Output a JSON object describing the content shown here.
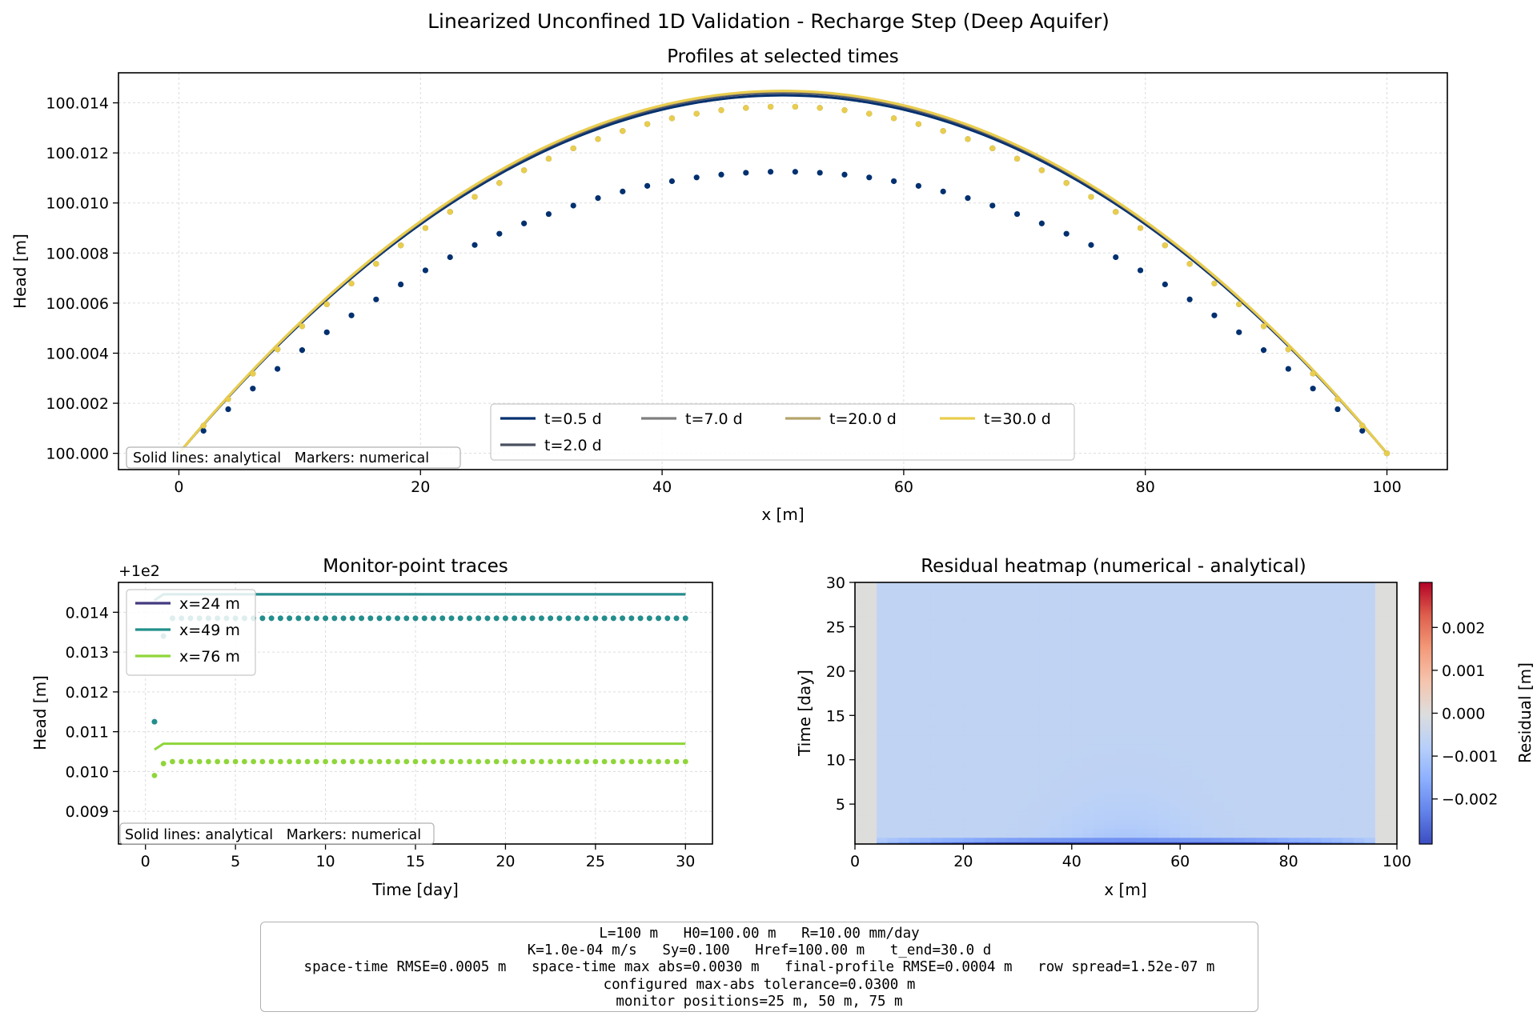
{
  "figure": {
    "suptitle": "Linearized Unconfined 1D Validation - Recharge Step (Deep Aquifer)"
  },
  "chart_data": [
    {
      "id": "profiles",
      "type": "line",
      "title": "Profiles at selected times",
      "xlabel": "x [m]",
      "ylabel": "Head [m]",
      "xlim": [
        -5,
        105
      ],
      "ylim": [
        99.99935,
        100.0152
      ],
      "xticks": [
        0,
        20,
        40,
        60,
        80,
        100
      ],
      "yticks": [
        100.0,
        100.002,
        100.004,
        100.006,
        100.008,
        100.01,
        100.012,
        100.014
      ],
      "ytick_labels": [
        "100.000",
        "100.002",
        "100.004",
        "100.006",
        "100.008",
        "100.010",
        "100.012",
        "100.014"
      ],
      "grid": true,
      "legend_placement": "lower-center",
      "note": "Solid lines: analytical   Markers: numerical",
      "H0": 100.0,
      "L": 100,
      "series": [
        {
          "name": "t=0.5 d",
          "color": "#00306f",
          "analytical_peak": 0.0143,
          "numerical_peak": 0.01125
        },
        {
          "name": "t=2.0 d",
          "color": "#4a5060",
          "analytical_peak": 0.0144,
          "numerical_peak": 0.01385
        },
        {
          "name": "t=7.0 d",
          "color": "#7f7f7f",
          "analytical_peak": 0.01445,
          "numerical_peak": 0.01385
        },
        {
          "name": "t=20.0 d",
          "color": "#b5a46a",
          "analytical_peak": 0.01447,
          "numerical_peak": 0.01385
        },
        {
          "name": "t=30.0 d",
          "color": "#e9cd4d",
          "analytical_peak": 0.01448,
          "numerical_peak": 0.01385
        }
      ],
      "marker_x_step": 2.0408
    },
    {
      "id": "traces",
      "type": "line",
      "title": "Monitor-point traces",
      "xlabel": "Time [day]",
      "ylabel": "Head [m]",
      "offset_label": "+1e2",
      "xlim": [
        -1.5,
        31.5
      ],
      "ylim": [
        0.00818,
        0.01475
      ],
      "xticks": [
        0,
        5,
        10,
        15,
        20,
        25,
        30
      ],
      "yticks": [
        0.009,
        0.01,
        0.011,
        0.012,
        0.013,
        0.014
      ],
      "ytick_labels": [
        "0.009",
        "0.010",
        "0.011",
        "0.012",
        "0.013",
        "0.014"
      ],
      "grid": true,
      "legend_placement": "upper-left",
      "note": "Solid lines: analytical   Markers: numerical",
      "series": [
        {
          "name": "x=24 m",
          "color": "#433a80",
          "analytical_start": 0.0143,
          "analytical_final": 0.01445,
          "numerical_first": 0.01125,
          "numerical_second": 0.0134,
          "numerical_final": 0.01385
        },
        {
          "name": "x=49 m",
          "color": "#21908c",
          "analytical_start": 0.0143,
          "analytical_final": 0.01445,
          "numerical_first": 0.01125,
          "numerical_second": 0.0134,
          "numerical_final": 0.01385
        },
        {
          "name": "x=76 m",
          "color": "#8fd63a",
          "analytical_start": 0.01055,
          "analytical_final": 0.0107,
          "numerical_first": 0.0099,
          "numerical_second": 0.0102,
          "numerical_final": 0.01025
        }
      ],
      "t_start": 0.5,
      "t_end": 30.0,
      "t_step": 0.5
    },
    {
      "id": "residual",
      "type": "heatmap",
      "title": "Residual heatmap (numerical - analytical)",
      "xlabel": "x [m]",
      "ylabel": "Time [day]",
      "xlim": [
        0,
        100
      ],
      "ylim": [
        0.5,
        30
      ],
      "xticks": [
        0,
        20,
        40,
        60,
        80,
        100
      ],
      "yticks": [
        5,
        10,
        15,
        20,
        25,
        30
      ],
      "colorbar_label": "Residual [m]",
      "colorbar_range": [
        -0.00305,
        0.00305
      ],
      "colorbar_ticks": [
        -0.002,
        -0.001,
        0.0,
        0.001,
        0.002
      ],
      "colorbar_tick_labels": [
        "−0.002",
        "−0.001",
        "0.000",
        "0.001",
        "0.002"
      ],
      "colormap": "coolwarm",
      "steady_residual": -0.0006,
      "early_peak_residual": -0.003,
      "edge_near_zero_x": [
        4,
        96
      ]
    }
  ],
  "info": {
    "lines": [
      "L=100 m   H0=100.00 m   R=10.00 mm/day",
      "K=1.0e-04 m/s   Sy=0.100   Href=100.00 m   t_end=30.0 d",
      "space-time RMSE=0.0005 m   space-time max abs=0.0030 m   final-profile RMSE=0.0004 m   row spread=1.52e-07 m",
      "configured max-abs tolerance=0.0300 m",
      "monitor positions=25 m, 50 m, 75 m"
    ]
  }
}
